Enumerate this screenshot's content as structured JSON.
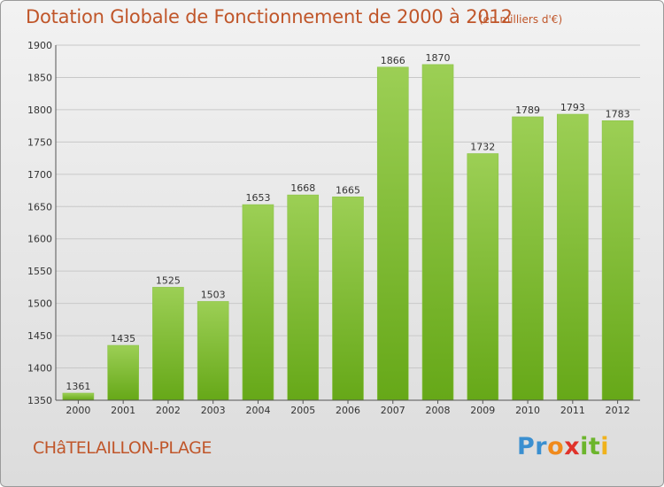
{
  "title": "Dotation Globale de Fonctionnement de 2000 à 2012",
  "unit": "(en milliers d'€)",
  "commune": "CHâTELAILLON-PLAGE",
  "brand": {
    "letters": [
      {
        "char": "P",
        "color": "#3a8fd0"
      },
      {
        "char": "r",
        "color": "#3a8fd0"
      },
      {
        "char": "o",
        "color": "#f08a1c"
      },
      {
        "char": "x",
        "color": "#e0322a"
      },
      {
        "char": "i",
        "color": "#6cb52c"
      },
      {
        "char": "t",
        "color": "#6cb52c"
      },
      {
        "char": "i",
        "color": "#f0b21c"
      }
    ]
  },
  "colors": {
    "bar_light": "#9ccf55",
    "bar_dark": "#66a818",
    "text_accent": "#c0562a"
  },
  "chart_data": {
    "type": "bar",
    "categories": [
      "2000",
      "2001",
      "2002",
      "2003",
      "2004",
      "2005",
      "2006",
      "2007",
      "2008",
      "2009",
      "2010",
      "2011",
      "2012"
    ],
    "values": [
      1361,
      1435,
      1525,
      1503,
      1653,
      1668,
      1665,
      1866,
      1870,
      1732,
      1789,
      1793,
      1783
    ],
    "ylim": [
      1350,
      1900
    ],
    "yticks": [
      1350,
      1400,
      1450,
      1500,
      1550,
      1600,
      1650,
      1700,
      1750,
      1800,
      1850,
      1900
    ],
    "grid": true,
    "data_labels": true
  }
}
